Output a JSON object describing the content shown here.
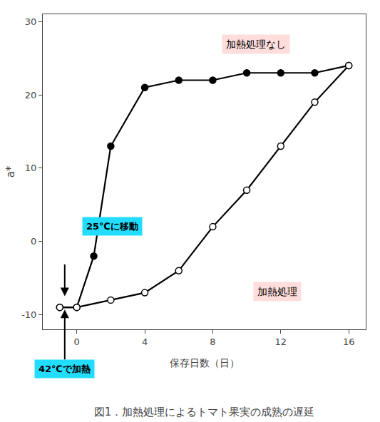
{
  "chart_data": {
    "type": "line",
    "title": "図1．加熱処理によるトマト果実の成熟の遅延",
    "xlabel": "保存日数（日）",
    "ylabel": "a*",
    "xlim": [
      -2,
      17
    ],
    "ylim": [
      -12,
      31
    ],
    "xticks": [
      0,
      4,
      8,
      12,
      16
    ],
    "yticks": [
      -10,
      0,
      10,
      20,
      30
    ],
    "grid": false,
    "series": [
      {
        "x": [
          -1,
          0,
          1,
          2,
          4,
          6,
          8,
          10,
          12,
          14,
          16
        ],
        "values": [
          -9,
          -9,
          -2,
          13,
          21,
          22,
          22,
          23,
          23,
          23,
          24
        ],
        "color": "#000000",
        "marker": "filled"
      },
      {
        "x": [
          -1,
          0,
          2,
          4,
          6,
          8,
          10,
          12,
          14,
          16
        ],
        "values": [
          -9,
          -9,
          -8,
          -7,
          -4,
          2,
          7,
          13,
          19,
          24
        ],
        "color": "#000000",
        "marker": "open"
      }
    ],
    "annotations": [
      {
        "text": "加熱処理なし",
        "color": "#ffdddd"
      },
      {
        "text": "加熱処理",
        "color": "#ffdddd"
      },
      {
        "text": "25℃に移動",
        "color": "#22ddff"
      },
      {
        "text": "42℃で加熱",
        "color": "#22ddff"
      }
    ]
  }
}
